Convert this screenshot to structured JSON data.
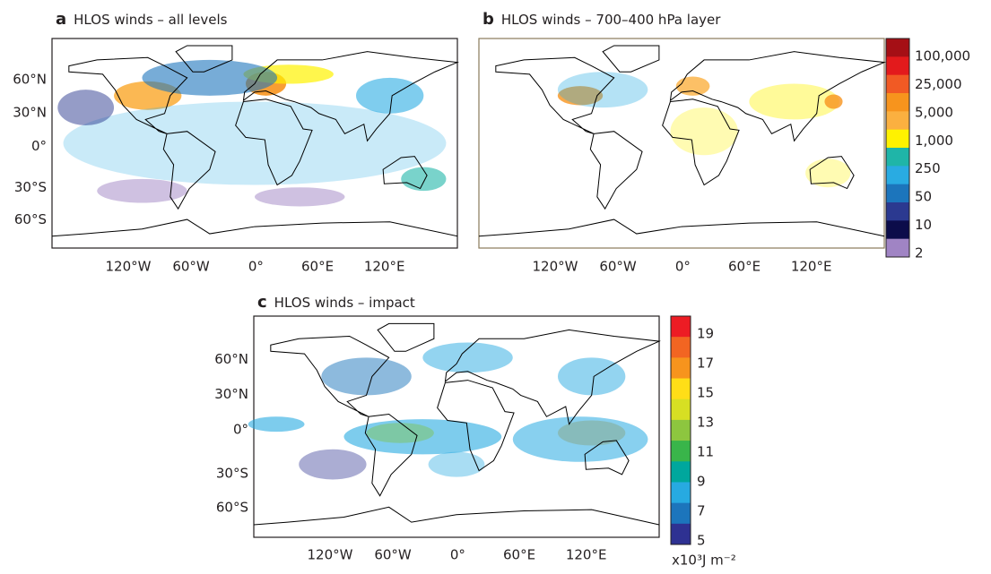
{
  "panels": [
    {
      "letter": "a",
      "title": "HLOS winds – all levels",
      "lat_labels": [
        "60°N",
        "30°N",
        "0°",
        "30°S",
        "60°S"
      ],
      "lon_labels": [
        "120°W",
        "60°W",
        "0°",
        "60°E",
        "120°E"
      ]
    },
    {
      "letter": "b",
      "title": "HLOS winds – 700–400 hPa layer",
      "lon_labels": [
        "120°W",
        "60°W",
        "0°",
        "60°E",
        "120°E"
      ],
      "colorbar": {
        "labels": [
          "100,000",
          "25,000",
          "5,000",
          "1,000",
          "250",
          "50",
          "10",
          "2"
        ],
        "colors": [
          "#a50f15",
          "#e31a1c",
          "#f15a24",
          "#f7941d",
          "#fbb040",
          "#fff200",
          "#1fb5a8",
          "#29abe2",
          "#1c75bc",
          "#2b3990",
          "#0c0c4a",
          "#a084c4"
        ]
      }
    },
    {
      "letter": "c",
      "title": "HLOS winds – impact",
      "lat_labels": [
        "60°N",
        "30°N",
        "0°",
        "30°S",
        "60°S"
      ],
      "lon_labels": [
        "120°W",
        "60°W",
        "0°",
        "60°E",
        "120°E"
      ],
      "colorbar": {
        "labels": [
          "19",
          "17",
          "15",
          "13",
          "11",
          "9",
          "7",
          "5"
        ],
        "unit": "x10³J m⁻²",
        "colors": [
          "#ed1c24",
          "#f26522",
          "#f7941d",
          "#ffde17",
          "#d7df23",
          "#8dc63f",
          "#39b54a",
          "#00a79d",
          "#27aae1",
          "#1c75bc",
          "#2e3192"
        ]
      }
    }
  ]
}
